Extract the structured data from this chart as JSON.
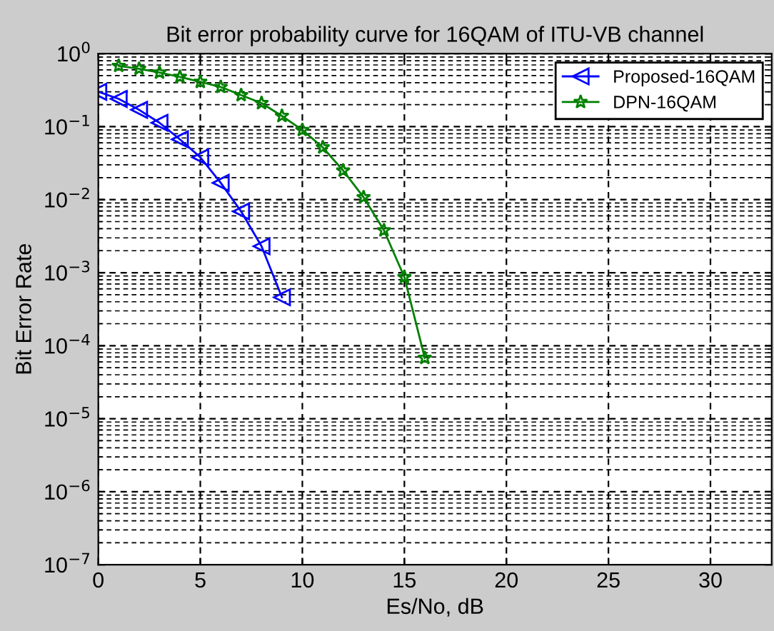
{
  "chart_data": {
    "type": "line",
    "title": "Bit error probability curve for 16QAM of ITU-VB channel",
    "xlabel": "Es/No, dB",
    "ylabel": "Bit Error Rate",
    "log": "y",
    "xlim": [
      0,
      33
    ],
    "xticks": [
      0,
      5,
      10,
      15,
      20,
      25,
      30
    ],
    "ylim": [
      1e-07,
      1
    ],
    "yticks": [
      {
        "value": 1e-07,
        "label": "10$^{−7}$"
      },
      {
        "value": 1e-06,
        "label": "10$^{−6}$"
      },
      {
        "value": 1e-05,
        "label": "10$^{−5}$"
      },
      {
        "value": 0.0001,
        "label": "10$^{−4}$"
      },
      {
        "value": 0.001,
        "label": "10$^{−3}$"
      },
      {
        "value": 0.01,
        "label": "10$^{−2}$"
      },
      {
        "value": 0.1,
        "label": "10$^{−1}$"
      },
      {
        "value": 1,
        "label": "10$^{0}$"
      }
    ],
    "grid": true,
    "legend": "top right",
    "line_style": "solid",
    "series": [
      {
        "name": "Proposed-16QAM",
        "color": "#0000ff",
        "marker": "triangle",
        "x": [
          0,
          1,
          2,
          3,
          4,
          5,
          6,
          7,
          8,
          9
        ],
        "values": [
          0.3,
          0.24,
          0.17,
          0.113,
          0.067,
          0.038,
          0.017,
          0.0069,
          0.0023,
          0.00046
        ]
      },
      {
        "name": "DPN-16QAM",
        "color": "#008000",
        "marker": "star",
        "x": [
          1,
          2,
          3,
          4,
          5,
          6,
          7,
          8,
          9,
          10,
          11,
          12,
          13,
          14,
          15,
          16
        ],
        "values": [
          0.68,
          0.62,
          0.55,
          0.48,
          0.41,
          0.35,
          0.27,
          0.21,
          0.14,
          0.09,
          0.052,
          0.025,
          0.0108,
          0.0038,
          0.00087,
          6.8e-05
        ]
      }
    ]
  }
}
